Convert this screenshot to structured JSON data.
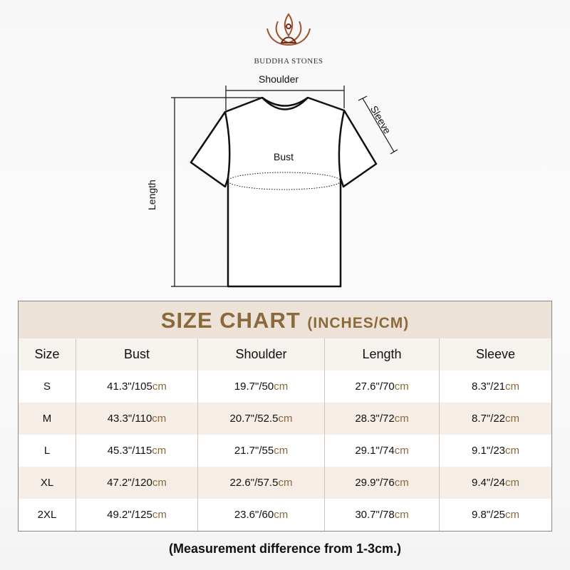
{
  "brand": "BUDDHA STONES",
  "diagram": {
    "shoulder": "Shoulder",
    "sleeve": "Sleeve",
    "bust": "Bust",
    "length": "Length"
  },
  "table": {
    "title": "SIZE CHART",
    "title_sub": "(INCHES/CM)",
    "headers": [
      "Size",
      "Bust",
      "Shoulder",
      "Length",
      "Sleeve"
    ],
    "unit": "cm",
    "rows": [
      [
        "S",
        "41.3\"/105",
        "19.7\"/50",
        "27.6\"/70",
        "8.3\"/21"
      ],
      [
        "M",
        "43.3\"/110",
        "20.7\"/52.5",
        "28.3\"/72",
        "8.7\"/22"
      ],
      [
        "L",
        "45.3\"/115",
        "21.7\"/55",
        "29.1\"/74",
        "9.1\"/23"
      ],
      [
        "XL",
        "47.2\"/120",
        "22.6\"/57.5",
        "29.9\"/76",
        "9.4\"/24"
      ],
      [
        "2XL",
        "49.2\"/125",
        "23.6\"/60",
        "30.7\"/78",
        "9.8\"/25"
      ]
    ]
  },
  "note": "(Measurement difference from 1-3cm.)",
  "colors": {
    "accent": "#8a6a3c",
    "title_band": "#ede2d7"
  }
}
